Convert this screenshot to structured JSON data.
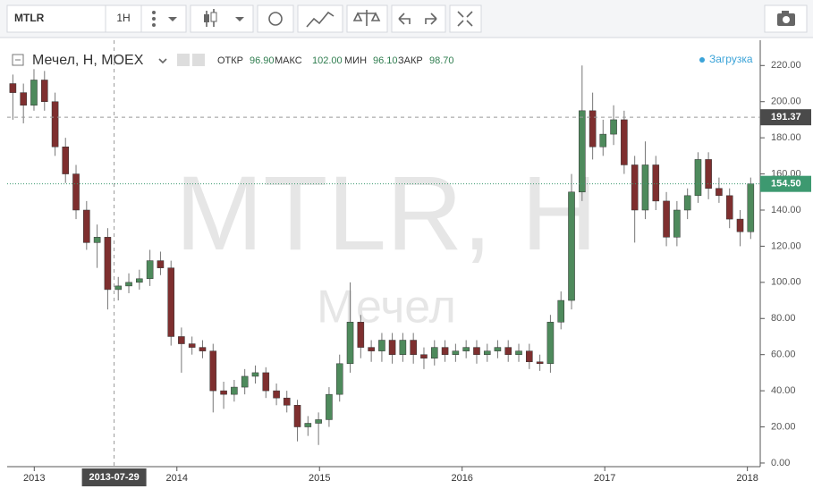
{
  "toolbar": {
    "symbol": "MTLR",
    "interval": "1H"
  },
  "legend": {
    "labels": [
      "ОТКР",
      "МАКС",
      "МИН",
      "ЗАКР"
    ],
    "values": [
      "96.90",
      "102.00",
      "96.10",
      "98.70"
    ],
    "status": "Загрузка"
  },
  "watermark": {
    "symbol": "MTLR, H",
    "name": "Мечел"
  },
  "chart_data": {
    "type": "candlestick",
    "title": "Мечел, Н, MOEX",
    "up_color": "#4e8a5c",
    "down_color": "#7e2f2f",
    "x": [
      2012.85,
      2012.924,
      2012.998,
      2013.072,
      2013.146,
      2013.219,
      2013.293,
      2013.367,
      2013.441,
      2013.515,
      2013.589,
      2013.663,
      2013.737,
      2013.811,
      2013.885,
      2013.959,
      2014.032,
      2014.106,
      2014.18,
      2014.254,
      2014.328,
      2014.402,
      2014.476,
      2014.55,
      2014.624,
      2014.698,
      2014.771,
      2014.845,
      2014.919,
      2014.993,
      2015.067,
      2015.141,
      2015.215,
      2015.289,
      2015.363,
      2015.437,
      2015.51,
      2015.584,
      2015.658,
      2015.732,
      2015.806,
      2015.88,
      2015.954,
      2016.028,
      2016.102,
      2016.176,
      2016.249,
      2016.323,
      2016.397,
      2016.471,
      2016.545,
      2016.619,
      2016.693,
      2016.767,
      2016.841,
      2016.915,
      2016.988,
      2017.062,
      2017.136,
      2017.21,
      2017.284,
      2017.358,
      2017.432,
      2017.506,
      2017.58,
      2017.654,
      2017.727,
      2017.801,
      2017.875,
      2017.949,
      2018.023
    ],
    "open": [
      210,
      205,
      198,
      212,
      200,
      175,
      160,
      140,
      122,
      125,
      96,
      98,
      100,
      102,
      112,
      108,
      70,
      66,
      64,
      62,
      40,
      38,
      42,
      48,
      50,
      40,
      36,
      32,
      20,
      22,
      24,
      38,
      55,
      78,
      64,
      62,
      68,
      60,
      68,
      60,
      58,
      64,
      60,
      62,
      64,
      60,
      62,
      64,
      60,
      62,
      56,
      55,
      78,
      90,
      150,
      195,
      175,
      182,
      190,
      165,
      140,
      165,
      145,
      125,
      140,
      148,
      168,
      152,
      148,
      135,
      128
    ],
    "high": [
      215,
      210,
      218,
      217,
      205,
      180,
      165,
      145,
      132,
      130,
      103,
      105,
      107,
      118,
      117,
      112,
      75,
      70,
      68,
      66,
      45,
      46,
      52,
      54,
      53,
      44,
      40,
      35,
      26,
      28,
      42,
      60,
      100,
      82,
      68,
      72,
      72,
      72,
      72,
      64,
      68,
      68,
      66,
      68,
      68,
      66,
      68,
      68,
      66,
      66,
      60,
      82,
      95,
      160,
      220,
      205,
      190,
      198,
      195,
      170,
      178,
      170,
      150,
      145,
      152,
      172,
      172,
      158,
      152,
      140,
      158
    ],
    "low": [
      190,
      188,
      195,
      195,
      170,
      155,
      135,
      118,
      108,
      85,
      90,
      94,
      96,
      98,
      104,
      65,
      50,
      60,
      58,
      28,
      30,
      34,
      38,
      44,
      36,
      32,
      28,
      12,
      15,
      10,
      20,
      34,
      50,
      58,
      56,
      56,
      55,
      56,
      55,
      52,
      54,
      56,
      56,
      58,
      55,
      56,
      58,
      56,
      56,
      52,
      51,
      50,
      74,
      85,
      145,
      168,
      170,
      176,
      160,
      122,
      135,
      140,
      120,
      120,
      135,
      144,
      146,
      144,
      130,
      120,
      124
    ],
    "close": [
      205,
      198,
      212,
      200,
      175,
      160,
      140,
      122,
      125,
      96,
      98,
      100,
      102,
      112,
      108,
      70,
      66,
      64,
      62,
      40,
      38,
      42,
      48,
      50,
      40,
      36,
      32,
      20,
      22,
      24,
      38,
      55,
      78,
      64,
      62,
      68,
      60,
      68,
      60,
      58,
      64,
      60,
      62,
      64,
      60,
      62,
      64,
      60,
      62,
      56,
      55,
      78,
      90,
      150,
      195,
      175,
      182,
      190,
      165,
      140,
      165,
      145,
      125,
      140,
      148,
      168,
      152,
      148,
      135,
      128,
      154.5
    ],
    "xlim": [
      2012.81,
      2018.09
    ],
    "xticks": [
      2013,
      2014,
      2015,
      2016,
      2017,
      2018
    ],
    "ylim": [
      -2,
      234
    ],
    "yticks": [
      {
        "value": 0,
        "label": "0.00"
      },
      {
        "value": 20,
        "label": "20.00"
      },
      {
        "value": 40,
        "label": "40.00"
      },
      {
        "value": 60,
        "label": "60.00"
      },
      {
        "value": 80,
        "label": "80.00"
      },
      {
        "value": 100,
        "label": "100.00"
      },
      {
        "value": 120,
        "label": "120.00"
      },
      {
        "value": 140,
        "label": "140.00"
      },
      {
        "value": 160,
        "label": "160.00"
      },
      {
        "value": 180,
        "label": "180.00"
      },
      {
        "value": 200,
        "label": "200.00"
      },
      {
        "value": 220,
        "label": "220.00"
      }
    ],
    "crosshair": {
      "x": {
        "value": 2013.56,
        "label": "2013-07-29"
      },
      "y": 191.37
    },
    "last_price": {
      "value": 154.5,
      "label": "154.50",
      "color": "#3d9970"
    }
  }
}
